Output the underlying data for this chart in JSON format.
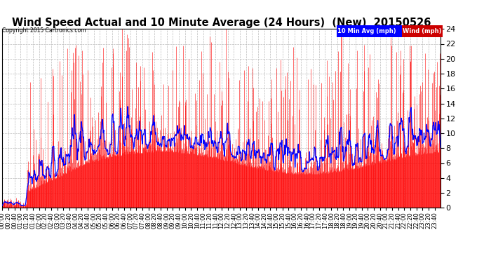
{
  "n_points": 1440,
  "title": "Wind Speed Actual and 10 Minute Average (24 Hours)  (New)  20150526",
  "copyright": "Copyright 2015 Cartronics.com",
  "legend_avg_label": "10 Min Avg (mph)",
  "legend_wind_label": "Wind (mph)",
  "legend_avg_bg": "#0000ff",
  "legend_wind_bg": "#cc0000",
  "wind_color": "#ff0000",
  "avg_color": "#0000ff",
  "ylim": [
    0,
    24
  ],
  "ytick_step": 2,
  "background_color": "#ffffff",
  "plot_bg_color": "#ffffff",
  "grid_color": "#bbbbbb",
  "title_fontsize": 10.5,
  "tick_fontsize": 6.0
}
